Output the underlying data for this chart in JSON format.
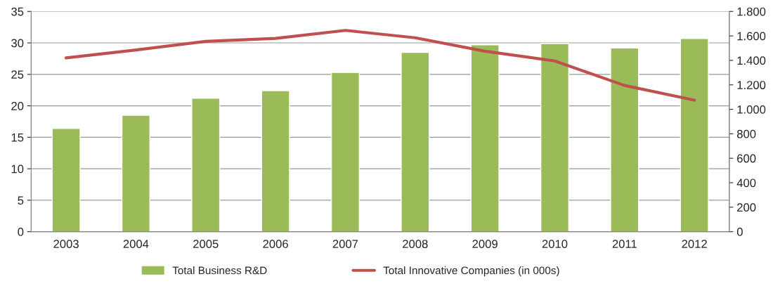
{
  "chart_data": {
    "type": "bar",
    "categories": [
      "2003",
      "2004",
      "2005",
      "2006",
      "2007",
      "2008",
      "2009",
      "2010",
      "2011",
      "2012"
    ],
    "series": [
      {
        "name": "Total Business R&D",
        "color": "#9bbb59",
        "values": [
          16.4,
          18.5,
          21.2,
          22.4,
          25.3,
          28.5,
          29.7,
          29.9,
          29.2,
          30.7
        ]
      },
      {
        "name": "Total Innovative Companies (in 000s)",
        "type": "line",
        "axis": "y2",
        "color": "#c0504d",
        "values": [
          1420,
          1485,
          1555,
          1580,
          1645,
          1585,
          1475,
          1395,
          1195,
          1075
        ]
      }
    ],
    "ylim": [
      0,
      35
    ],
    "yticks": [
      0,
      5,
      10,
      15,
      20,
      25,
      30,
      35
    ],
    "y2lim": [
      0,
      1800
    ],
    "y2ticks": [
      0,
      200,
      400,
      600,
      800,
      {
        "value": 1000,
        "label": "1.000"
      },
      {
        "value": 1200,
        "label": "1.200"
      },
      {
        "value": 1400,
        "label": "1.400"
      },
      {
        "value": 1600,
        "label": "1.600"
      },
      {
        "value": 1800,
        "label": "1.800"
      }
    ],
    "grid": "y",
    "legend": "bottom",
    "marker": "none",
    "line_style": "solid"
  }
}
